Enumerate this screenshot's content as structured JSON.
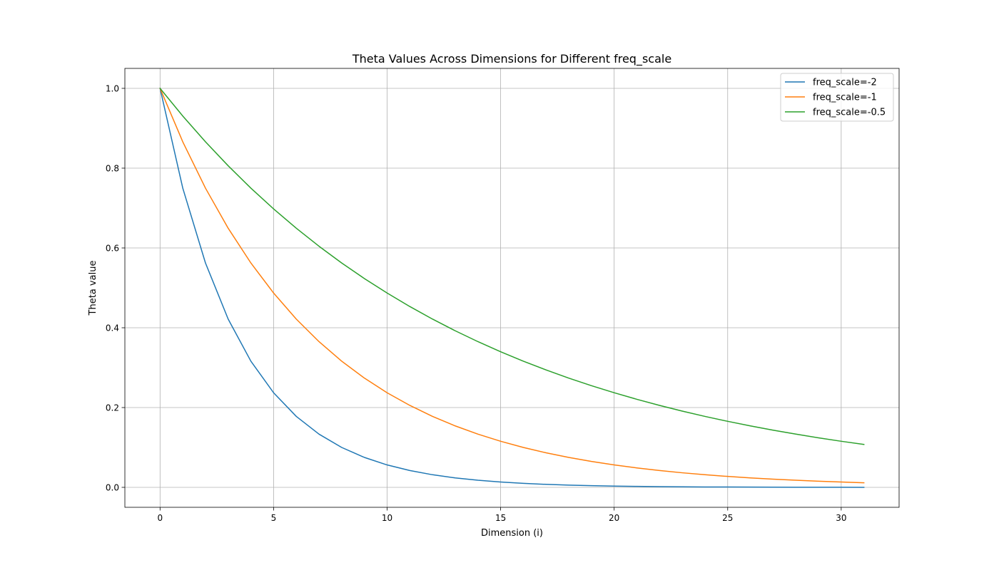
{
  "chart_data": {
    "type": "line",
    "title": "Theta Values Across Dimensions for Different freq_scale",
    "xlabel": "Dimension (i)",
    "ylabel": "Theta value",
    "xlim": [
      -1.55,
      32.55
    ],
    "ylim": [
      -0.05,
      1.05
    ],
    "xticks": [
      0,
      5,
      10,
      15,
      20,
      25,
      30
    ],
    "yticks": [
      0.0,
      0.2,
      0.4,
      0.6,
      0.8,
      1.0
    ],
    "xtick_labels": [
      "0",
      "5",
      "10",
      "15",
      "20",
      "25",
      "30"
    ],
    "ytick_labels": [
      "0.0",
      "0.2",
      "0.4",
      "0.6",
      "0.8",
      "1.0"
    ],
    "grid": true,
    "legend_position": "top-right",
    "x": [
      0,
      1,
      2,
      3,
      4,
      5,
      6,
      7,
      8,
      9,
      10,
      11,
      12,
      13,
      14,
      15,
      16,
      17,
      18,
      19,
      20,
      21,
      22,
      23,
      24,
      25,
      26,
      27,
      28,
      29,
      30,
      31
    ],
    "series": [
      {
        "name": "freq_scale=-2",
        "color": "#1f77b4",
        "values": [
          1.0,
          0.7499,
          0.5623,
          0.4217,
          0.3162,
          0.2371,
          0.1778,
          0.1334,
          0.1,
          0.075,
          0.0562,
          0.0422,
          0.0316,
          0.0237,
          0.0178,
          0.0133,
          0.01,
          0.0075,
          0.0056,
          0.0042,
          0.0032,
          0.0024,
          0.0018,
          0.0013,
          0.001,
          0.0008,
          0.0006,
          0.0004,
          0.0003,
          0.0002,
          0.0002,
          0.0001
        ]
      },
      {
        "name": "freq_scale=-1",
        "color": "#ff7f0e",
        "values": [
          1.0,
          0.866,
          0.7499,
          0.6494,
          0.5623,
          0.487,
          0.4217,
          0.3652,
          0.3162,
          0.2738,
          0.2371,
          0.2054,
          0.1778,
          0.154,
          0.1334,
          0.1155,
          0.1,
          0.0866,
          0.075,
          0.0649,
          0.0562,
          0.0487,
          0.0422,
          0.0365,
          0.0316,
          0.0274,
          0.0237,
          0.0205,
          0.0178,
          0.0154,
          0.0133,
          0.0115
        ]
      },
      {
        "name": "freq_scale=-0.5",
        "color": "#2ca02c",
        "values": [
          1.0,
          0.9306,
          0.866,
          0.8059,
          0.7499,
          0.6979,
          0.6494,
          0.6043,
          0.5623,
          0.5233,
          0.487,
          0.4532,
          0.4217,
          0.3924,
          0.3652,
          0.3398,
          0.3162,
          0.2943,
          0.2738,
          0.2548,
          0.2371,
          0.2207,
          0.2054,
          0.1911,
          0.1778,
          0.1655,
          0.154,
          0.1433,
          0.1334,
          0.1241,
          0.1155,
          0.1075
        ]
      }
    ]
  }
}
